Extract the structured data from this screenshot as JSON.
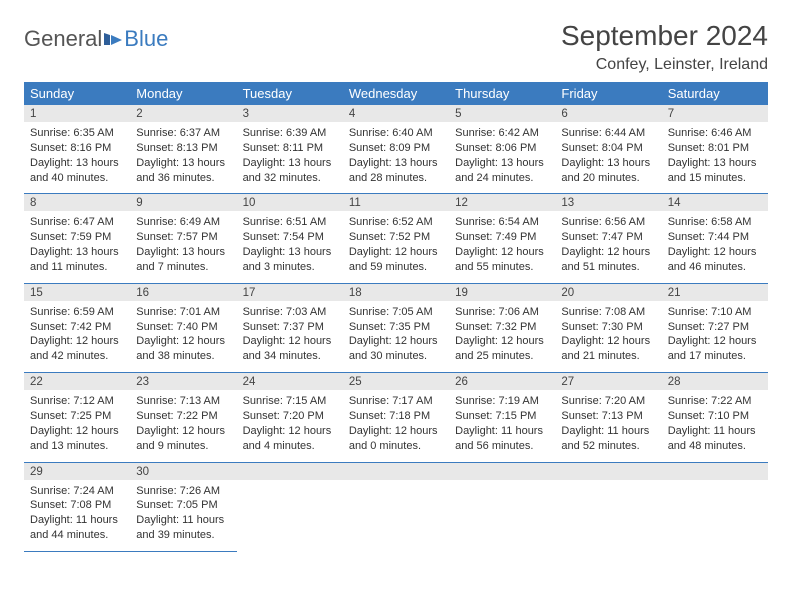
{
  "brand": {
    "part1": "General",
    "part2": "Blue"
  },
  "title": "September 2024",
  "location": "Confey, Leinster, Ireland",
  "colors": {
    "header_bg": "#3b7bbf",
    "header_text": "#ffffff",
    "day_num_bg": "#e8e8e8",
    "border": "#3b7bbf",
    "body_text": "#333333",
    "title_text": "#444444",
    "page_bg": "#ffffff"
  },
  "fonts": {
    "title_size_pt": 21,
    "location_size_pt": 12,
    "weekday_size_pt": 10,
    "daynum_size_pt": 9,
    "cell_size_pt": 8
  },
  "weekdays": [
    "Sunday",
    "Monday",
    "Tuesday",
    "Wednesday",
    "Thursday",
    "Friday",
    "Saturday"
  ],
  "weeks": [
    [
      {
        "n": "1",
        "sr": "6:35 AM",
        "ss": "8:16 PM",
        "dl": "13 hours and 40 minutes."
      },
      {
        "n": "2",
        "sr": "6:37 AM",
        "ss": "8:13 PM",
        "dl": "13 hours and 36 minutes."
      },
      {
        "n": "3",
        "sr": "6:39 AM",
        "ss": "8:11 PM",
        "dl": "13 hours and 32 minutes."
      },
      {
        "n": "4",
        "sr": "6:40 AM",
        "ss": "8:09 PM",
        "dl": "13 hours and 28 minutes."
      },
      {
        "n": "5",
        "sr": "6:42 AM",
        "ss": "8:06 PM",
        "dl": "13 hours and 24 minutes."
      },
      {
        "n": "6",
        "sr": "6:44 AM",
        "ss": "8:04 PM",
        "dl": "13 hours and 20 minutes."
      },
      {
        "n": "7",
        "sr": "6:46 AM",
        "ss": "8:01 PM",
        "dl": "13 hours and 15 minutes."
      }
    ],
    [
      {
        "n": "8",
        "sr": "6:47 AM",
        "ss": "7:59 PM",
        "dl": "13 hours and 11 minutes."
      },
      {
        "n": "9",
        "sr": "6:49 AM",
        "ss": "7:57 PM",
        "dl": "13 hours and 7 minutes."
      },
      {
        "n": "10",
        "sr": "6:51 AM",
        "ss": "7:54 PM",
        "dl": "13 hours and 3 minutes."
      },
      {
        "n": "11",
        "sr": "6:52 AM",
        "ss": "7:52 PM",
        "dl": "12 hours and 59 minutes."
      },
      {
        "n": "12",
        "sr": "6:54 AM",
        "ss": "7:49 PM",
        "dl": "12 hours and 55 minutes."
      },
      {
        "n": "13",
        "sr": "6:56 AM",
        "ss": "7:47 PM",
        "dl": "12 hours and 51 minutes."
      },
      {
        "n": "14",
        "sr": "6:58 AM",
        "ss": "7:44 PM",
        "dl": "12 hours and 46 minutes."
      }
    ],
    [
      {
        "n": "15",
        "sr": "6:59 AM",
        "ss": "7:42 PM",
        "dl": "12 hours and 42 minutes."
      },
      {
        "n": "16",
        "sr": "7:01 AM",
        "ss": "7:40 PM",
        "dl": "12 hours and 38 minutes."
      },
      {
        "n": "17",
        "sr": "7:03 AM",
        "ss": "7:37 PM",
        "dl": "12 hours and 34 minutes."
      },
      {
        "n": "18",
        "sr": "7:05 AM",
        "ss": "7:35 PM",
        "dl": "12 hours and 30 minutes."
      },
      {
        "n": "19",
        "sr": "7:06 AM",
        "ss": "7:32 PM",
        "dl": "12 hours and 25 minutes."
      },
      {
        "n": "20",
        "sr": "7:08 AM",
        "ss": "7:30 PM",
        "dl": "12 hours and 21 minutes."
      },
      {
        "n": "21",
        "sr": "7:10 AM",
        "ss": "7:27 PM",
        "dl": "12 hours and 17 minutes."
      }
    ],
    [
      {
        "n": "22",
        "sr": "7:12 AM",
        "ss": "7:25 PM",
        "dl": "12 hours and 13 minutes."
      },
      {
        "n": "23",
        "sr": "7:13 AM",
        "ss": "7:22 PM",
        "dl": "12 hours and 9 minutes."
      },
      {
        "n": "24",
        "sr": "7:15 AM",
        "ss": "7:20 PM",
        "dl": "12 hours and 4 minutes."
      },
      {
        "n": "25",
        "sr": "7:17 AM",
        "ss": "7:18 PM",
        "dl": "12 hours and 0 minutes."
      },
      {
        "n": "26",
        "sr": "7:19 AM",
        "ss": "7:15 PM",
        "dl": "11 hours and 56 minutes."
      },
      {
        "n": "27",
        "sr": "7:20 AM",
        "ss": "7:13 PM",
        "dl": "11 hours and 52 minutes."
      },
      {
        "n": "28",
        "sr": "7:22 AM",
        "ss": "7:10 PM",
        "dl": "11 hours and 48 minutes."
      }
    ],
    [
      {
        "n": "29",
        "sr": "7:24 AM",
        "ss": "7:08 PM",
        "dl": "11 hours and 44 minutes."
      },
      {
        "n": "30",
        "sr": "7:26 AM",
        "ss": "7:05 PM",
        "dl": "11 hours and 39 minutes."
      },
      null,
      null,
      null,
      null,
      null
    ]
  ],
  "labels": {
    "sunrise": "Sunrise:",
    "sunset": "Sunset:",
    "daylight": "Daylight:"
  }
}
